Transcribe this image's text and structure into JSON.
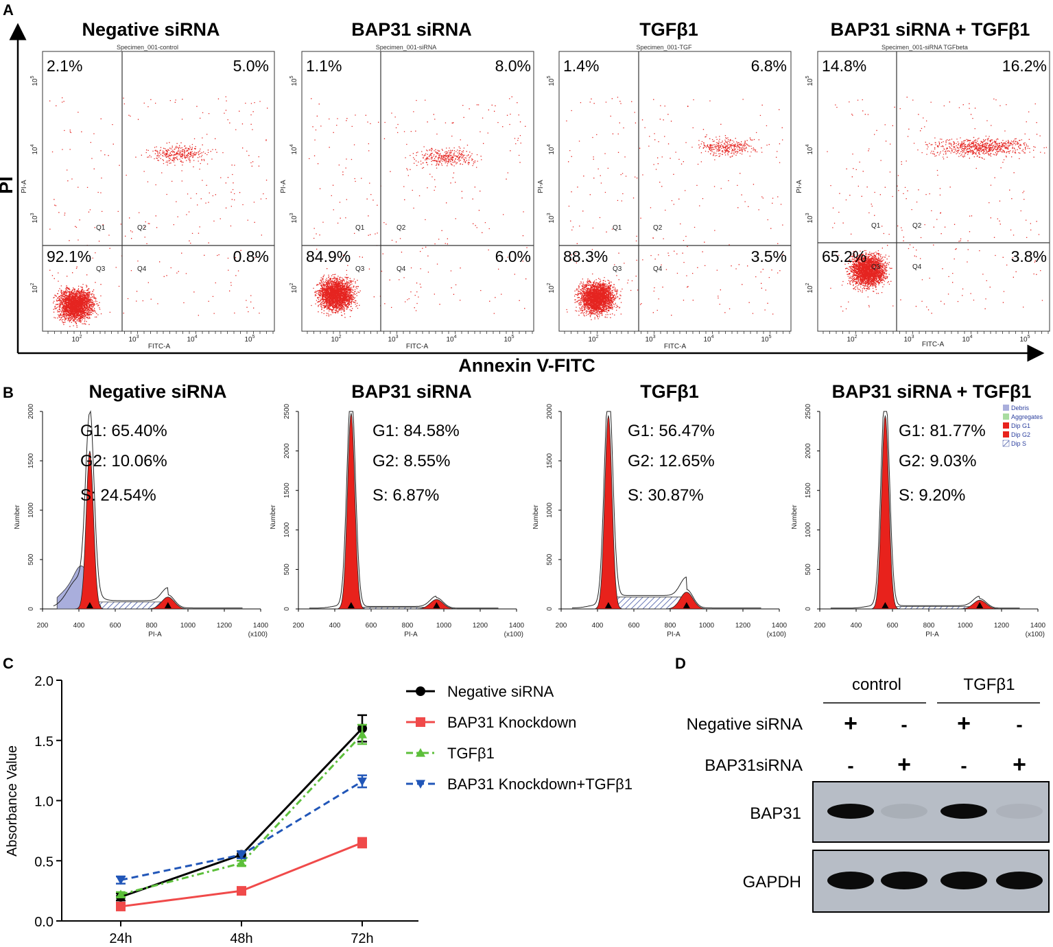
{
  "panel_labels": [
    "A",
    "B",
    "C",
    "D"
  ],
  "panelA": {
    "y_axis_label": "PI",
    "x_axis_label": "Annexin V-FITC",
    "quadrant_labels": [
      "Q1",
      "Q2",
      "Q3",
      "Q4"
    ],
    "x_channel": "FITC-A",
    "y_channel": "PI-A",
    "tick_base": "10",
    "tick_exponents": [
      "2",
      "3",
      "4",
      "5"
    ],
    "plots": [
      {
        "title": "Negative siRNA",
        "specimen": "Specimen_001-control",
        "q1": "2.1%",
        "q2": "5.0%",
        "q3": "92.1%",
        "q4": "0.8%"
      },
      {
        "title": "BAP31 siRNA",
        "specimen": "Specimen_001-siRNA",
        "q1": "1.1%",
        "q2": "8.0%",
        "q3": "84.9%",
        "q4": "6.0%"
      },
      {
        "title": "TGFβ1",
        "specimen": "Specimen_001-TGF",
        "q1": "1.4%",
        "q2": "6.8%",
        "q3": "88.3%",
        "q4": "3.5%"
      },
      {
        "title": "BAP31 siRNA + TGFβ1",
        "specimen": "Specimen_001-siRNA TGFbeta",
        "q1": "14.8%",
        "q2": "16.2%",
        "q3": "65.2%",
        "q4": "3.8%"
      }
    ]
  },
  "panelB": {
    "x_label": "PI-A",
    "y_label": "Number",
    "x_unit": "(x100)",
    "x_ticks": [
      "200",
      "400",
      "600",
      "800",
      "1000",
      "1200",
      "1400"
    ],
    "legend": [
      {
        "label": "Debris",
        "color": "#a9aedc"
      },
      {
        "label": "Aggregates",
        "color": "#a8dca0"
      },
      {
        "label": "Dip G1",
        "color": "#e8221c"
      },
      {
        "label": "Dip G2",
        "color": "#e8221c"
      },
      {
        "label": "Dip S",
        "color": "#3a4fa0"
      }
    ],
    "plots": [
      {
        "title": "Negative siRNA",
        "ymax": 2000,
        "y_ticks": [
          "0",
          "500",
          "1000",
          "1500",
          "2000"
        ],
        "g1": "G1: 65.40%",
        "g2": "G2: 10.06%",
        "s": "S: 24.54%",
        "g1_pos": 460,
        "g2_pos": 890,
        "g1_peak": 1600,
        "g2_peak": 120,
        "s_level": 70,
        "debris": true
      },
      {
        "title": "BAP31 siRNA",
        "ymax": 2500,
        "y_ticks": [
          "0",
          "500",
          "1000",
          "1500",
          "2000",
          "2500"
        ],
        "g1": "G1: 84.58%",
        "g2": "G2: 8.55%",
        "s": "S: 6.87%",
        "g1_pos": 490,
        "g2_pos": 960,
        "g1_peak": 2480,
        "g2_peak": 120,
        "s_level": 20,
        "debris": false
      },
      {
        "title": "TGFβ1",
        "ymax": 2000,
        "y_ticks": [
          "0",
          "500",
          "1000",
          "1500",
          "2000"
        ],
        "g1": "G1: 56.47%",
        "g2": "G2: 12.65%",
        "s": "S: 30.87%",
        "g1_pos": 460,
        "g2_pos": 890,
        "g1_peak": 1960,
        "g2_peak": 170,
        "s_level": 120,
        "debris": false
      },
      {
        "title": "BAP31 siRNA + TGFβ1",
        "ymax": 2500,
        "y_ticks": [
          "0",
          "500",
          "1000",
          "1500",
          "2000",
          "2500"
        ],
        "x_ticks": [
          "200",
          "400",
          "600",
          "800",
          "1000",
          "1200",
          "1400"
        ],
        "g1": "G1: 81.77%",
        "g2": "G2: 9.03%",
        "s": "S: 9.20%",
        "g1_pos": 560,
        "g2_pos": 1080,
        "g1_peak": 2450,
        "g2_peak": 110,
        "s_level": 30,
        "debris": false
      }
    ]
  },
  "chart_data": {
    "type": "line",
    "categories": [
      "24h",
      "48h",
      "72h"
    ],
    "ylabel": "Absorbance Value",
    "xlabel": "",
    "ylim": [
      0.0,
      2.0
    ],
    "y_ticks": [
      "0.0",
      "0.5",
      "1.0",
      "1.5",
      "2.0"
    ],
    "series": [
      {
        "name": "Negative siRNA",
        "values": [
          0.2,
          0.55,
          1.6
        ],
        "errors": [
          0.03,
          0.03,
          0.11
        ],
        "color": "#000000",
        "marker": "circle",
        "dash": ""
      },
      {
        "name": "BAP31 Knockdown",
        "values": [
          0.12,
          0.25,
          0.65
        ],
        "errors": [
          0.02,
          0.02,
          0.04
        ],
        "color": "#f04a4a",
        "marker": "square",
        "dash": ""
      },
      {
        "name": "TGFβ1",
        "values": [
          0.22,
          0.48,
          1.55
        ],
        "errors": [
          0.02,
          0.02,
          0.08
        ],
        "color": "#5cbf3a",
        "marker": "triangle-up",
        "dash": "10,5,3,5"
      },
      {
        "name": "BAP31 Knockdown+TGFβ1",
        "values": [
          0.34,
          0.55,
          1.16
        ],
        "errors": [
          0.03,
          0.03,
          0.05
        ],
        "color": "#2156b8",
        "marker": "triangle-down",
        "dash": "10,6"
      }
    ]
  },
  "panelD": {
    "group_labels": [
      "control",
      "TGFβ1"
    ],
    "row_labels": [
      "Negative siRNA",
      "BAP31siRNA"
    ],
    "negative_sirna_signs": [
      "+",
      "-",
      "+",
      "-"
    ],
    "bap31_sirna_signs": [
      "-",
      "+",
      "-",
      "+"
    ],
    "blots": [
      {
        "label": "BAP31",
        "intensity": [
          1.0,
          0.08,
          1.0,
          0.05
        ]
      },
      {
        "label": "GAPDH",
        "intensity": [
          1.0,
          1.0,
          1.0,
          1.0
        ]
      }
    ]
  }
}
